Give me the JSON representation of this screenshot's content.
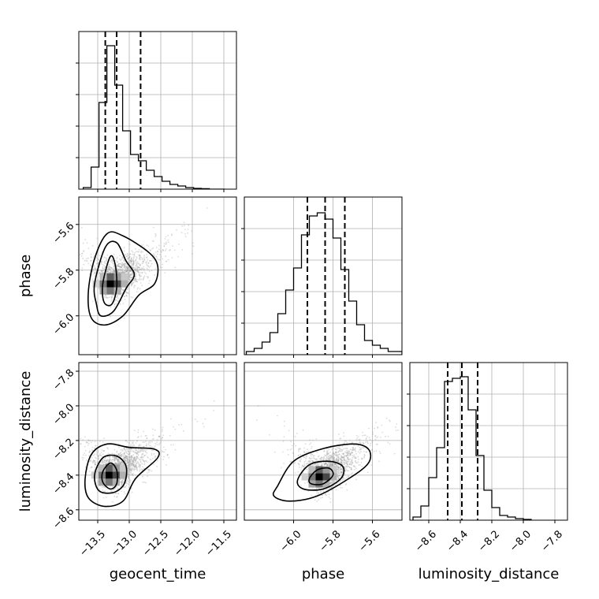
{
  "chart_data": {
    "type": "corner",
    "parameters": [
      "geocent_time",
      "phase",
      "luminosity_distance"
    ],
    "grid": true,
    "quantile_lines": "dashed",
    "panels": [
      {
        "id": "hist-geocent_time",
        "type": "histogram",
        "x_param": "geocent_time",
        "xlim": [
          -13.8,
          -11.3
        ],
        "ylim": [
          0,
          100
        ],
        "bin_edges": [
          -13.73,
          -13.605,
          -13.48,
          -13.355,
          -13.23,
          -13.105,
          -12.98,
          -12.855,
          -12.73,
          -12.605,
          -12.48,
          -12.355,
          -12.23,
          -12.105,
          -11.98,
          -11.855,
          -11.73,
          -11.605,
          -11.48
        ],
        "counts": [
          1,
          14,
          55,
          91,
          66,
          37,
          22,
          18,
          12,
          8,
          5,
          3,
          2,
          1,
          0.5,
          0.3,
          0,
          0
        ],
        "quantiles": [
          -13.38,
          -13.2,
          -12.82
        ]
      },
      {
        "id": "hist-phase",
        "type": "histogram",
        "x_param": "phase",
        "xlim": [
          -6.25,
          -5.45
        ],
        "ylim": [
          0,
          100
        ],
        "bin_edges": [
          -6.24,
          -6.2,
          -6.16,
          -6.12,
          -6.08,
          -6.04,
          -6.0,
          -5.96,
          -5.92,
          -5.88,
          -5.84,
          -5.8,
          -5.76,
          -5.72,
          -5.68,
          -5.64,
          -5.6,
          -5.56,
          -5.52,
          -5.48,
          -5.45
        ],
        "counts": [
          2,
          4,
          8,
          14,
          26,
          41,
          55,
          76,
          88,
          90,
          86,
          74,
          54,
          34,
          19,
          9,
          6,
          4,
          2,
          2
        ],
        "quantiles": [
          -5.93,
          -5.84,
          -5.74
        ]
      },
      {
        "id": "hist-luminosity_distance",
        "type": "histogram",
        "x_param": "luminosity_distance",
        "xlim": [
          -8.72,
          -7.72
        ],
        "ylim": [
          0,
          100
        ],
        "bin_edges": [
          -8.7,
          -8.65,
          -8.6,
          -8.55,
          -8.5,
          -8.45,
          -8.4,
          -8.35,
          -8.3,
          -8.25,
          -8.2,
          -8.15,
          -8.1,
          -8.05,
          -8.0,
          -7.95
        ],
        "counts": [
          2,
          9,
          27,
          46,
          88,
          90,
          91,
          70,
          41,
          19,
          8,
          3,
          2,
          1,
          0.5
        ],
        "quantiles": [
          -8.48,
          -8.39,
          -8.29
        ]
      },
      {
        "id": "scatter-geocent_time-phase",
        "type": "2d-density",
        "x_param": "geocent_time",
        "y_param": "phase",
        "xlim": [
          -13.8,
          -11.3
        ],
        "ylim": [
          -6.17,
          -5.48
        ],
        "mode": [
          -13.3,
          -5.86
        ],
        "contours": [
          [
            [
              -13.42,
              -5.86
            ],
            [
              -13.3,
              -5.74
            ],
            [
              -13.22,
              -5.78
            ],
            [
              -13.2,
              -5.88
            ],
            [
              -13.28,
              -5.95
            ],
            [
              -13.4,
              -5.94
            ]
          ],
          [
            [
              -13.55,
              -5.86
            ],
            [
              -13.38,
              -5.7
            ],
            [
              -13.2,
              -5.68
            ],
            [
              -13.05,
              -5.76
            ],
            [
              -12.92,
              -5.82
            ],
            [
              -13.05,
              -5.88
            ],
            [
              -13.25,
              -5.98
            ],
            [
              -13.45,
              -6.0
            ],
            [
              -13.52,
              -5.95
            ]
          ],
          [
            [
              -13.65,
              -5.9
            ],
            [
              -13.55,
              -5.75
            ],
            [
              -13.35,
              -5.64
            ],
            [
              -13.1,
              -5.65
            ],
            [
              -12.7,
              -5.72
            ],
            [
              -12.55,
              -5.78
            ],
            [
              -12.6,
              -5.86
            ],
            [
              -12.85,
              -5.91
            ],
            [
              -13.1,
              -6.0
            ],
            [
              -13.38,
              -6.04
            ],
            [
              -13.6,
              -6.01
            ]
          ]
        ]
      },
      {
        "id": "scatter-geocent_time-luminosity_distance",
        "type": "2d-density",
        "x_param": "geocent_time",
        "y_param": "luminosity_distance",
        "xlim": [
          -13.8,
          -11.3
        ],
        "ylim": [
          -8.66,
          -7.75
        ],
        "mode": [
          -13.32,
          -8.4
        ],
        "contours": [
          [
            [
              -13.42,
              -8.38
            ],
            [
              -13.3,
              -8.33
            ],
            [
              -13.2,
              -8.37
            ],
            [
              -13.2,
              -8.45
            ],
            [
              -13.3,
              -8.48
            ],
            [
              -13.42,
              -8.44
            ]
          ],
          [
            [
              -13.55,
              -8.4
            ],
            [
              -13.42,
              -8.3
            ],
            [
              -13.2,
              -8.29
            ],
            [
              -13.05,
              -8.35
            ],
            [
              -13.08,
              -8.45
            ],
            [
              -13.25,
              -8.5
            ],
            [
              -13.48,
              -8.49
            ]
          ],
          [
            [
              -13.7,
              -8.42
            ],
            [
              -13.6,
              -8.28
            ],
            [
              -13.35,
              -8.22
            ],
            [
              -13.0,
              -8.24
            ],
            [
              -12.6,
              -8.25
            ],
            [
              -12.55,
              -8.3
            ],
            [
              -12.9,
              -8.42
            ],
            [
              -13.1,
              -8.55
            ],
            [
              -13.4,
              -8.58
            ],
            [
              -13.65,
              -8.53
            ]
          ]
        ]
      },
      {
        "id": "scatter-phase-luminosity_distance",
        "type": "2d-density",
        "x_param": "phase",
        "y_param": "luminosity_distance",
        "xlim": [
          -6.25,
          -5.45
        ],
        "ylim": [
          -8.66,
          -7.75
        ],
        "mode": [
          -5.87,
          -8.41
        ],
        "contours": [
          [
            [
              -5.92,
              -8.42
            ],
            [
              -5.88,
              -8.37
            ],
            [
              -5.82,
              -8.36
            ],
            [
              -5.8,
              -8.4
            ],
            [
              -5.85,
              -8.45
            ],
            [
              -5.91,
              -8.45
            ]
          ],
          [
            [
              -5.98,
              -8.43
            ],
            [
              -5.92,
              -8.34
            ],
            [
              -5.82,
              -8.32
            ],
            [
              -5.75,
              -8.35
            ],
            [
              -5.76,
              -8.42
            ],
            [
              -5.85,
              -8.48
            ],
            [
              -5.95,
              -8.48
            ]
          ],
          [
            [
              -6.08,
              -8.46
            ],
            [
              -6.0,
              -8.32
            ],
            [
              -5.86,
              -8.25
            ],
            [
              -5.7,
              -8.22
            ],
            [
              -5.62,
              -8.25
            ],
            [
              -5.62,
              -8.33
            ],
            [
              -5.72,
              -8.42
            ],
            [
              -5.88,
              -8.52
            ],
            [
              -6.02,
              -8.55
            ],
            [
              -6.1,
              -8.52
            ]
          ]
        ]
      }
    ],
    "axes": {
      "geocent_time": {
        "label": "geocent_time",
        "ticks": [
          -13.5,
          -13.0,
          -12.5,
          -12.0,
          -11.5
        ],
        "tick_labels": [
          "−13.5",
          "−13.0",
          "−12.5",
          "−12.0",
          "−11.5"
        ]
      },
      "phase": {
        "label": "phase",
        "ticks": [
          -6.0,
          -5.8,
          -5.6
        ],
        "tick_labels": [
          "−6.0",
          "−5.8",
          "−5.6"
        ]
      },
      "luminosity_distance": {
        "label": "luminosity_distance",
        "ticks": [
          -8.6,
          -8.4,
          -8.2,
          -8.0,
          -7.8
        ],
        "tick_labels": [
          "−8.6",
          "−8.4",
          "−8.2",
          "−8.0",
          "−7.8"
        ]
      }
    },
    "colors": {
      "line": "#000000",
      "grid": "#b0b0b0",
      "scatter": "#9a9a9a",
      "density_dark": "#000000",
      "density_light": "#f2f2f2"
    }
  }
}
